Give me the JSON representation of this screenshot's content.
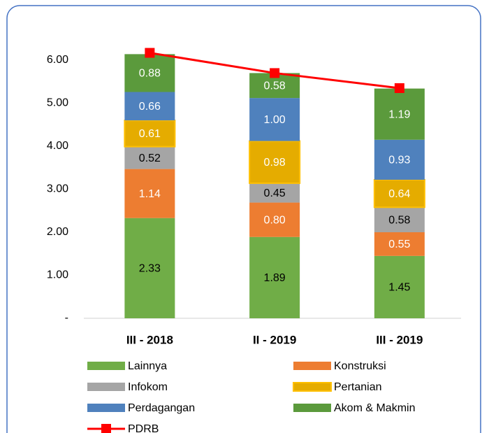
{
  "chart_data": {
    "type": "stacked-bar-line",
    "categories": [
      "III - 2018",
      "II - 2019",
      "III - 2019"
    ],
    "series": [
      {
        "name": "Lainnya",
        "color": "#70ad47",
        "label_color": "#000000",
        "values": [
          2.33,
          1.89,
          1.45
        ],
        "value_labels": [
          "2.33",
          "1.89",
          "1.45"
        ]
      },
      {
        "name": "Konstruksi",
        "color": "#ed7d31",
        "label_color": "#ffffff",
        "values": [
          1.14,
          0.8,
          0.55
        ],
        "value_labels": [
          "1.14",
          "0.80",
          "0.55"
        ]
      },
      {
        "name": "Infokom",
        "color": "#a5a5a5",
        "label_color": "#000000",
        "values": [
          0.52,
          0.45,
          0.58
        ],
        "value_labels": [
          "0.52",
          "0.45",
          "0.58"
        ]
      },
      {
        "name": "Pertanian",
        "color": "#e5ac00",
        "border": "#ffc000",
        "label_color": "#ffffff",
        "values": [
          0.61,
          0.98,
          0.64
        ],
        "value_labels": [
          "0.61",
          "0.98",
          "0.64"
        ]
      },
      {
        "name": "Perdagangan",
        "color": "#4f81bd",
        "label_color": "#ffffff",
        "values": [
          0.66,
          1.0,
          0.93
        ],
        "value_labels": [
          "0.66",
          "1.00",
          "0.93"
        ]
      },
      {
        "name": "Akom & Makmin",
        "color": "#5b9a3c",
        "label_color": "#ffffff",
        "values": [
          0.88,
          0.58,
          1.19
        ],
        "value_labels": [
          "0.88",
          "0.58",
          "1.19"
        ]
      }
    ],
    "line": {
      "name": "PDRB",
      "color": "#ff0000",
      "values": [
        6.17,
        5.7,
        5.35
      ]
    },
    "ylim": [
      0,
      6.5
    ],
    "yticks": [
      {
        "value": 0,
        "label": "-"
      },
      {
        "value": 1,
        "label": "1.00"
      },
      {
        "value": 2,
        "label": "2.00"
      },
      {
        "value": 3,
        "label": "3.00"
      },
      {
        "value": 4,
        "label": "4.00"
      },
      {
        "value": 5,
        "label": "5.00"
      },
      {
        "value": 6,
        "label": "6.00"
      }
    ]
  }
}
